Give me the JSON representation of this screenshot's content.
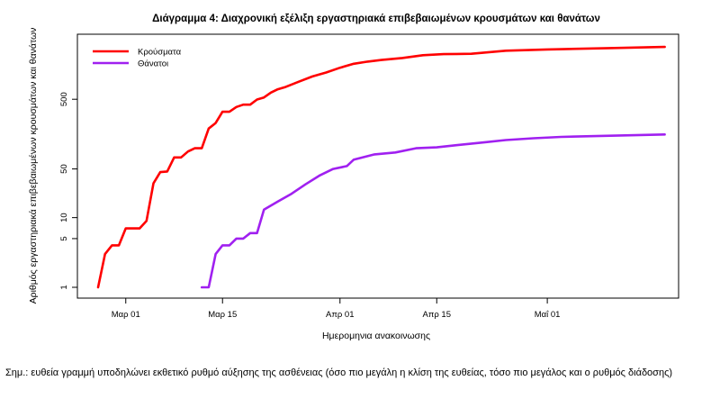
{
  "chart_data": {
    "type": "line",
    "title": "Διάγραμμα 4: Διαχρονική εξέλιξη εργαστηριακά επιβεβαιωμένων κρουσμάτων και θανάτων",
    "xlabel": "Ημερομηνια ανακοινωσης",
    "ylabel": "Αριθμός εργαστηριακά επιβεβαιωμένων κρουσμάτων και θανάτων",
    "y_scale": "log",
    "ylim": [
      1,
      3000
    ],
    "xlim": [
      "2020-02-23",
      "2020-05-20"
    ],
    "yticks": [
      1,
      5,
      10,
      50,
      500
    ],
    "xticks": [
      {
        "date": "2020-03-01",
        "label": "Μαρ 01"
      },
      {
        "date": "2020-03-15",
        "label": "Μαρ 15"
      },
      {
        "date": "2020-04-01",
        "label": "Απρ 01"
      },
      {
        "date": "2020-04-15",
        "label": "Απρ 15"
      },
      {
        "date": "2020-05-01",
        "label": "Μαΐ 01"
      }
    ],
    "grid": false,
    "legend_position": "top-left",
    "series": [
      {
        "name": "Κρούσματα",
        "color": "#ff0000",
        "points": [
          [
            "2020-02-26",
            1
          ],
          [
            "2020-02-27",
            3
          ],
          [
            "2020-02-28",
            4
          ],
          [
            "2020-02-29",
            4
          ],
          [
            "2020-03-01",
            7
          ],
          [
            "2020-03-03",
            7
          ],
          [
            "2020-03-04",
            9
          ],
          [
            "2020-03-05",
            31
          ],
          [
            "2020-03-06",
            45
          ],
          [
            "2020-03-07",
            46
          ],
          [
            "2020-03-08",
            73
          ],
          [
            "2020-03-09",
            73
          ],
          [
            "2020-03-10",
            89
          ],
          [
            "2020-03-11",
            99
          ],
          [
            "2020-03-12",
            99
          ],
          [
            "2020-03-13",
            190
          ],
          [
            "2020-03-14",
            228
          ],
          [
            "2020-03-15",
            331
          ],
          [
            "2020-03-16",
            331
          ],
          [
            "2020-03-17",
            387
          ],
          [
            "2020-03-18",
            418
          ],
          [
            "2020-03-19",
            418
          ],
          [
            "2020-03-20",
            495
          ],
          [
            "2020-03-21",
            530
          ],
          [
            "2020-03-22",
            624
          ],
          [
            "2020-03-23",
            695
          ],
          [
            "2020-03-24",
            743
          ],
          [
            "2020-03-26",
            892
          ],
          [
            "2020-03-28",
            1061
          ],
          [
            "2020-03-30",
            1212
          ],
          [
            "2020-04-01",
            1415
          ],
          [
            "2020-04-03",
            1613
          ],
          [
            "2020-04-05",
            1735
          ],
          [
            "2020-04-07",
            1832
          ],
          [
            "2020-04-10",
            1955
          ],
          [
            "2020-04-13",
            2145
          ],
          [
            "2020-04-16",
            2224
          ],
          [
            "2020-04-20",
            2245
          ],
          [
            "2020-04-25",
            2490
          ],
          [
            "2020-05-01",
            2591
          ],
          [
            "2020-05-10",
            2710
          ],
          [
            "2020-05-18",
            2819
          ]
        ]
      },
      {
        "name": "Θάνατοι",
        "color": "#a020f0",
        "points": [
          [
            "2020-03-12",
            1
          ],
          [
            "2020-03-13",
            1
          ],
          [
            "2020-03-14",
            3
          ],
          [
            "2020-03-15",
            4
          ],
          [
            "2020-03-16",
            4
          ],
          [
            "2020-03-17",
            5
          ],
          [
            "2020-03-18",
            5
          ],
          [
            "2020-03-19",
            6
          ],
          [
            "2020-03-20",
            6
          ],
          [
            "2020-03-21",
            13
          ],
          [
            "2020-03-23",
            17
          ],
          [
            "2020-03-25",
            22
          ],
          [
            "2020-03-27",
            30
          ],
          [
            "2020-03-29",
            40
          ],
          [
            "2020-03-31",
            50
          ],
          [
            "2020-04-02",
            55
          ],
          [
            "2020-04-03",
            68
          ],
          [
            "2020-04-06",
            81
          ],
          [
            "2020-04-09",
            86
          ],
          [
            "2020-04-12",
            99
          ],
          [
            "2020-04-15",
            102
          ],
          [
            "2020-04-18",
            110
          ],
          [
            "2020-04-22",
            121
          ],
          [
            "2020-04-25",
            130
          ],
          [
            "2020-04-29",
            138
          ],
          [
            "2020-05-03",
            144
          ],
          [
            "2020-05-08",
            148
          ],
          [
            "2020-05-13",
            152
          ],
          [
            "2020-05-18",
            156
          ]
        ]
      }
    ]
  },
  "note": "Σημ.: ευθεία γραμμή υποδηλώνει εκθετικό ρυθμό αύξησης της ασθένειας (όσο πιο μεγάλη η κλίση της ευθείας, τόσο πιο μεγάλος και ο ρυθμός διάδοσης)"
}
